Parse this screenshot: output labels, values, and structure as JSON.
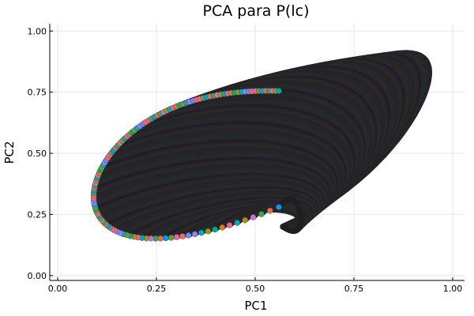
{
  "chart_data": {
    "type": "line",
    "title": "PCA para P(lc)",
    "xlabel": "PC1",
    "ylabel": "PC2",
    "xlim": [
      -0.02,
      1.03
    ],
    "ylim": [
      -0.02,
      1.03
    ],
    "xticks": [
      "0.00",
      "0.25",
      "0.50",
      "0.75",
      "1.00"
    ],
    "yticks": [
      "0.00",
      "0.25",
      "0.50",
      "0.75",
      "1.00"
    ],
    "xtick_values": [
      0,
      0.25,
      0.5,
      0.75,
      1.0
    ],
    "ytick_values": [
      0,
      0.25,
      0.5,
      0.75,
      1.0
    ],
    "grid": true,
    "legend": false,
    "description": "Family of nested curves. Each curve starts at a marker on an outer boundary arc and spirals inward, ending near (0.57, 0.20).",
    "marker_start": {
      "x": 0.56,
      "y": 0.28
    },
    "marker_boundary_ctrl": [
      [
        0.12,
        -0.02
      ],
      [
        -0.05,
        0.16
      ],
      [
        0.05,
        0.52
      ],
      [
        0.2,
        0.73
      ],
      [
        0.4,
        0.76
      ]
    ],
    "marker_end": {
      "x": 0.56,
      "y": 0.755
    },
    "marker_count": 118,
    "curve_end": {
      "x": 0.57,
      "y": 0.2
    },
    "outer_curve": {
      "from": [
        0.15,
        0.0
      ],
      "via": [
        [
          0.3,
          1.02
        ],
        [
          0.92,
          1.05
        ],
        [
          1.02,
          0.58
        ],
        [
          0.98,
          0.3
        ],
        [
          0.82,
          0.14
        ]
      ],
      "tail": [
        [
          0.9,
          0.34
        ],
        [
          0.82,
          0.46
        ],
        [
          0.78,
          0.55
        ],
        [
          0.7,
          0.46
        ],
        [
          0.58,
          0.26
        ],
        [
          0.5,
          0.2
        ],
        [
          0.41,
          0.24
        ],
        [
          0.33,
          0.26
        ],
        [
          0.22,
          0.29
        ],
        [
          0.11,
          0.28
        ],
        [
          0.05,
          0.21
        ]
      ],
      "ends": [
        0.75,
        0.17
      ]
    },
    "colors": [
      "#009AFA",
      "#E36F47",
      "#3EA44E",
      "#C371D2",
      "#AC8E18",
      "#00AAAE",
      "#ED5E93",
      "#C68225",
      "#00A98D",
      "#8E971E",
      "#00A9CD",
      "#9B7FE9",
      "#618DF6",
      "#F16C64",
      "#DD64B5",
      "#6B9D26"
    ],
    "curve_shading": [
      "#1f1f1f",
      "#2d2230",
      "#1f2e2b",
      "#2b2520",
      "#1e2633",
      "#2e1f24",
      "#232d20",
      "#2a2133"
    ]
  }
}
